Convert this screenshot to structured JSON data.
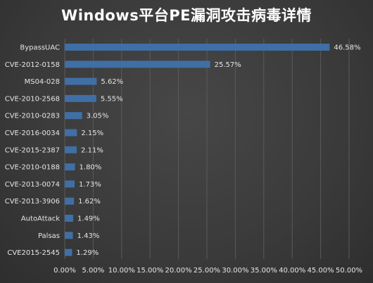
{
  "chart_data": {
    "type": "bar",
    "orientation": "horizontal",
    "title": "Windows平台PE漏洞攻击病毒详情",
    "categories": [
      "BypassUAC",
      "CVE-2012-0158",
      "MS04-028",
      "CVE-2010-2568",
      "CVE-2010-0283",
      "CVE-2016-0034",
      "CVE-2015-2387",
      "CVE-2010-0188",
      "CVE-2013-0074",
      "CVE-2013-3906",
      "AutoAttack",
      "Palsas",
      "CVE2015-2545"
    ],
    "values": [
      46.58,
      25.57,
      5.62,
      5.55,
      3.05,
      2.15,
      2.11,
      1.8,
      1.73,
      1.62,
      1.49,
      1.43,
      1.29
    ],
    "value_labels": [
      "46.58%",
      "25.57%",
      "5.62%",
      "5.55%",
      "3.05%",
      "2.15%",
      "2.11%",
      "1.80%",
      "1.73%",
      "1.62%",
      "1.49%",
      "1.43%",
      "1.29%"
    ],
    "x_ticks": [
      "0.00%",
      "5.00%",
      "10.00%",
      "15.00%",
      "20.00%",
      "25.00%",
      "30.00%",
      "35.00%",
      "40.00%",
      "45.00%",
      "50.00%"
    ],
    "xlim": [
      0,
      50
    ],
    "grid": true,
    "legend": "none",
    "bar_color": "#3f6fa5",
    "background_color": "#3a3a3a",
    "text_color": "#e6e6e6"
  }
}
